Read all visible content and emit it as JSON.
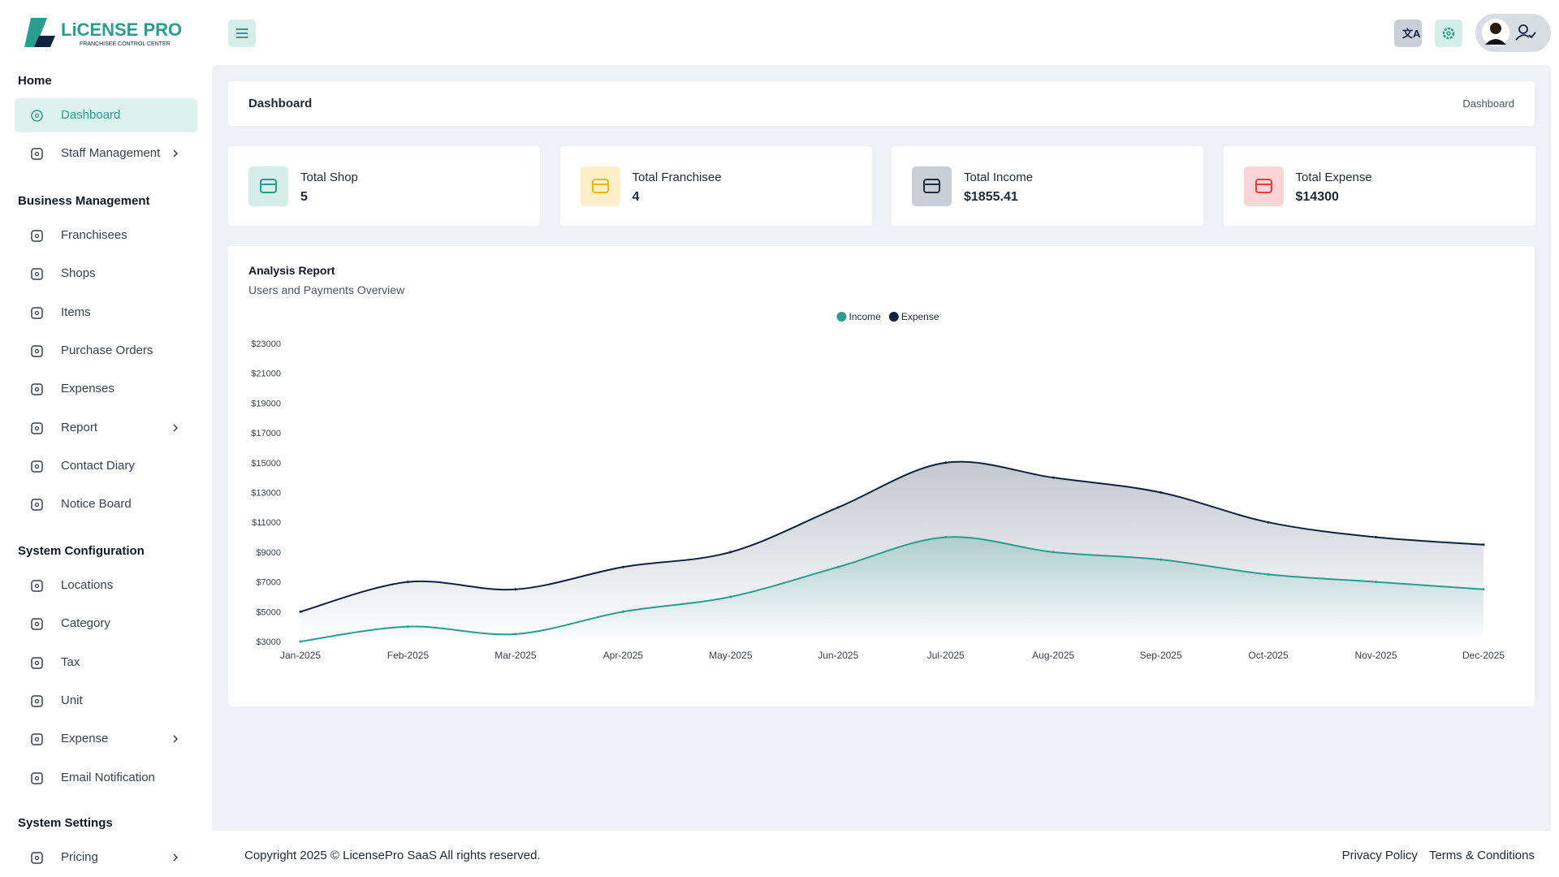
{
  "header": {
    "logo_title": "LiCENSE PRO",
    "logo_subtitle": "FRANCHISEE CONTROL CENTER"
  },
  "sidebar": {
    "sections": [
      {
        "title": "Home",
        "items": [
          {
            "label": "Dashboard",
            "active": true
          },
          {
            "label": "Staff Management",
            "submenu": true
          }
        ]
      },
      {
        "title": "Business Management",
        "items": [
          {
            "label": "Franchisees"
          },
          {
            "label": "Shops"
          },
          {
            "label": "Items"
          },
          {
            "label": "Purchase Orders"
          },
          {
            "label": "Expenses"
          },
          {
            "label": "Report",
            "submenu": true
          },
          {
            "label": "Contact Diary"
          },
          {
            "label": "Notice Board"
          }
        ]
      },
      {
        "title": "System Configuration",
        "items": [
          {
            "label": "Locations"
          },
          {
            "label": "Category"
          },
          {
            "label": "Tax"
          },
          {
            "label": "Unit"
          },
          {
            "label": "Expense",
            "submenu": true
          },
          {
            "label": "Email Notification"
          }
        ]
      },
      {
        "title": "System Settings",
        "items": [
          {
            "label": "Pricing",
            "submenu": true
          }
        ]
      }
    ]
  },
  "breadcrumb": {
    "title": "Dashboard",
    "path": "Dashboard"
  },
  "stats": [
    {
      "label": "Total Shop",
      "value": "5"
    },
    {
      "label": "Total Franchisee",
      "value": "4"
    },
    {
      "label": "Total Income",
      "value": "$1855.41"
    },
    {
      "label": "Total Expense",
      "value": "$14300"
    }
  ],
  "chart_data": {
    "type": "line",
    "title": "Analysis Report",
    "subtitle": "Users and Payments Overview",
    "categories": [
      "Jan-2025",
      "Feb-2025",
      "Mar-2025",
      "Apr-2025",
      "May-2025",
      "Jun-2025",
      "Jul-2025",
      "Aug-2025",
      "Sep-2025",
      "Oct-2025",
      "Nov-2025",
      "Dec-2025"
    ],
    "series": [
      {
        "name": "Income",
        "color": "#2a9d8f",
        "values": [
          3000,
          4000,
          3500,
          5000,
          6000,
          8000,
          10000,
          9000,
          8500,
          7500,
          7000,
          6500
        ]
      },
      {
        "name": "Expense",
        "color": "#0f2341",
        "values": [
          5000,
          7000,
          6500,
          8000,
          9000,
          12000,
          15000,
          14000,
          13000,
          11000,
          10000,
          9500
        ]
      }
    ],
    "ylim": [
      3000,
      23000
    ],
    "yticks": [
      {
        "value": 3000,
        "label": "$3000"
      },
      {
        "value": 5000,
        "label": "$5000"
      },
      {
        "value": 7000,
        "label": "$7000"
      },
      {
        "value": 9000,
        "label": "$9000"
      },
      {
        "value": 11000,
        "label": "$11000"
      },
      {
        "value": 13000,
        "label": "$13000"
      },
      {
        "value": 15000,
        "label": "$15000"
      },
      {
        "value": 17000,
        "label": "$17000"
      },
      {
        "value": 19000,
        "label": "$19000"
      },
      {
        "value": 21000,
        "label": "$21000"
      },
      {
        "value": 23000,
        "label": "$23000"
      }
    ],
    "legend": "top"
  },
  "footer": {
    "copyright": "Copyright 2025 © LicensePro SaaS All rights reserved.",
    "links": [
      "Privacy Policy",
      "Terms & Conditions"
    ]
  }
}
